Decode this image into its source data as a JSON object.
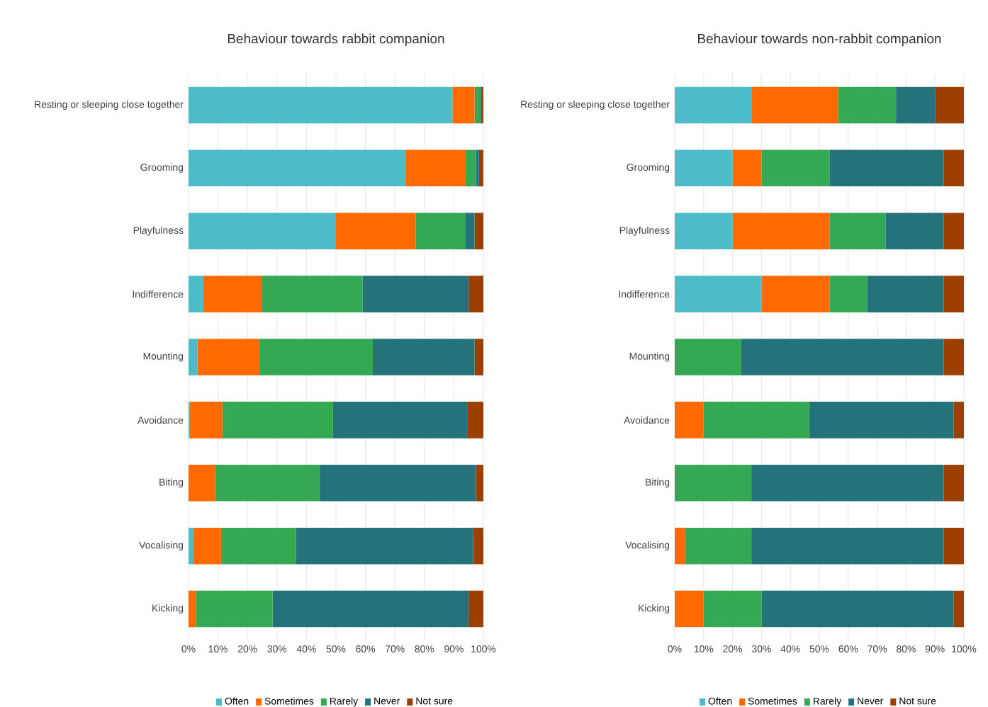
{
  "chart_data": [
    {
      "type": "bar",
      "orientation": "horizontal",
      "stacked": true,
      "title": "Behaviour towards rabbit companion",
      "categories": [
        "Resting or sleeping close together",
        "Grooming",
        "Playfulness",
        "Indifference",
        "Mounting",
        "Avoidance",
        "Biting",
        "Vocalising",
        "Kicking"
      ],
      "series": [
        {
          "name": "Often",
          "color": "#4bbcc8",
          "values": [
            89.5,
            73.5,
            50,
            5,
            3,
            0.5,
            0,
            1.5,
            0
          ]
        },
        {
          "name": "Sometimes",
          "color": "#ff6a00",
          "values": [
            7.5,
            20.5,
            27,
            20,
            21,
            11,
            9,
            9.5,
            2.5
          ]
        },
        {
          "name": "Rarely",
          "color": "#35a853",
          "values": [
            2,
            3.5,
            17,
            34,
            38.5,
            37.5,
            35.5,
            25.5,
            26
          ]
        },
        {
          "name": "Never",
          "color": "#25737a",
          "values": [
            0.5,
            1,
            3,
            36,
            34.5,
            45.5,
            53,
            60,
            66.5
          ]
        },
        {
          "name": "Not sure",
          "color": "#9c4000",
          "values": [
            0.5,
            1.5,
            3,
            5,
            3,
            5.5,
            2.5,
            3.5,
            5
          ]
        }
      ],
      "xlim": [
        0,
        100
      ],
      "xticks": [
        {
          "value": 0,
          "label": "0%"
        },
        {
          "value": 10,
          "label": "10%"
        },
        {
          "value": 20,
          "label": "20%"
        },
        {
          "value": 30,
          "label": "30%"
        },
        {
          "value": 40,
          "label": "40%"
        },
        {
          "value": 50,
          "label": "50%"
        },
        {
          "value": 60,
          "label": "60%"
        },
        {
          "value": 70,
          "label": "70%"
        },
        {
          "value": 80,
          "label": "80%"
        },
        {
          "value": 90,
          "label": "90%"
        },
        {
          "value": 100,
          "label": "100%"
        }
      ],
      "grid": "x",
      "legend": "bottom"
    },
    {
      "type": "bar",
      "orientation": "horizontal",
      "stacked": true,
      "title": "Behaviour towards non-rabbit companion",
      "categories": [
        "Resting or sleeping close together",
        "Grooming",
        "Playfulness",
        "Indifference",
        "Mounting",
        "Avoidance",
        "Biting",
        "Vocalising",
        "Kicking"
      ],
      "series": [
        {
          "name": "Often",
          "color": "#4bbcc8",
          "values": [
            26.5,
            20,
            20,
            30,
            0,
            0,
            0,
            0,
            0
          ]
        },
        {
          "name": "Sometimes",
          "color": "#ff6a00",
          "values": [
            30,
            10,
            33.5,
            23.5,
            0,
            10,
            0,
            3.5,
            10
          ]
        },
        {
          "name": "Rarely",
          "color": "#35a853",
          "values": [
            20,
            23.5,
            19.5,
            13,
            23,
            36.5,
            26.5,
            23,
            20
          ]
        },
        {
          "name": "Never",
          "color": "#25737a",
          "values": [
            13.5,
            39.5,
            20,
            26.5,
            70,
            50,
            66.5,
            66.5,
            66.5
          ]
        },
        {
          "name": "Not sure",
          "color": "#9c4000",
          "values": [
            10,
            7,
            7,
            7,
            7,
            3.5,
            7,
            7,
            3.5
          ]
        }
      ],
      "xlim": [
        0,
        100
      ],
      "xticks": [
        {
          "value": 0,
          "label": "0%"
        },
        {
          "value": 10,
          "label": "10%"
        },
        {
          "value": 20,
          "label": "20%"
        },
        {
          "value": 30,
          "label": "30%"
        },
        {
          "value": 40,
          "label": "40%"
        },
        {
          "value": 50,
          "label": "50%"
        },
        {
          "value": 60,
          "label": "60%"
        },
        {
          "value": 70,
          "label": "70%"
        },
        {
          "value": 80,
          "label": "80%"
        },
        {
          "value": 90,
          "label": "90%"
        },
        {
          "value": 100,
          "label": "100%"
        }
      ],
      "grid": "x",
      "legend": "bottom"
    }
  ]
}
